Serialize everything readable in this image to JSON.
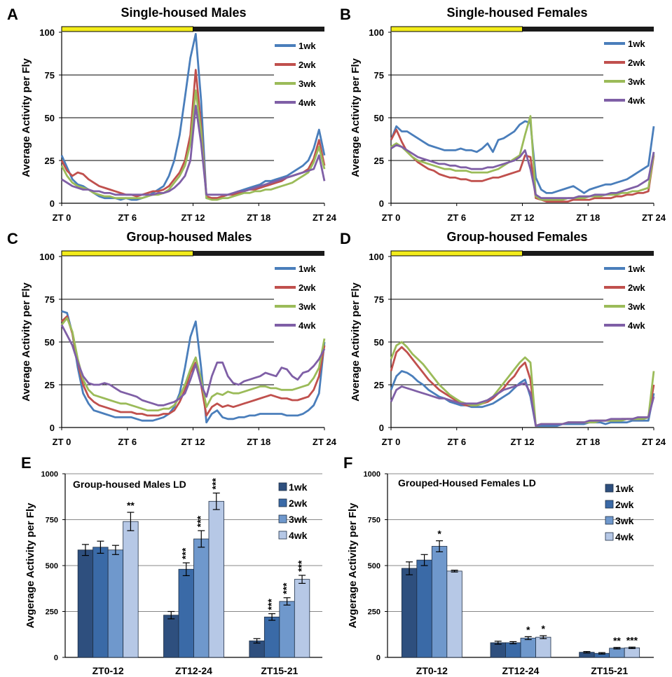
{
  "colors": {
    "1wk": "#4a7ebb",
    "2wk": "#c0504d",
    "3wk": "#9bbb59",
    "4wk": "#7f5fa6",
    "light_bar": "#f3ec1a",
    "dark_bar": "#1a1a1a",
    "bar_fills": [
      "#2e4f7e",
      "#3a6aa7",
      "#6f98cc",
      "#b6c8e6"
    ]
  },
  "chart_data": [
    {
      "id": "A",
      "type": "line",
      "panel_label": "A",
      "title": "Single-housed Males",
      "ylabel": "Average Activity per Fly",
      "xlabel": "",
      "ylim": [
        0,
        100
      ],
      "yticks": [
        0,
        25,
        50,
        75,
        100
      ],
      "xlim": [
        0,
        24
      ],
      "xticks": [
        "ZT 0",
        "ZT 6",
        "ZT 12",
        "ZT 18",
        "ZT 24"
      ],
      "photoperiod": [
        "light 0-12",
        "dark 12-24"
      ],
      "legend": [
        "1wk",
        "2wk",
        "3wk",
        "4wk"
      ],
      "series": [
        {
          "name": "1wk",
          "y": [
            28,
            21,
            14,
            11,
            10,
            8,
            6,
            4,
            3,
            3,
            3,
            2,
            3,
            2,
            2,
            3,
            4,
            6,
            8,
            10,
            16,
            25,
            40,
            62,
            85,
            99,
            60,
            3,
            3,
            3,
            4,
            5,
            6,
            7,
            8,
            9,
            10,
            11,
            13,
            13,
            14,
            15,
            16,
            18,
            20,
            22,
            25,
            32,
            43,
            28
          ]
        },
        {
          "name": "2wk",
          "y": [
            25,
            19,
            16,
            18,
            17,
            14,
            12,
            10,
            9,
            8,
            7,
            6,
            5,
            5,
            4,
            5,
            6,
            7,
            7,
            8,
            10,
            14,
            18,
            25,
            40,
            78,
            45,
            4,
            3,
            3,
            4,
            5,
            5,
            6,
            7,
            8,
            8,
            9,
            10,
            11,
            12,
            13,
            15,
            16,
            17,
            18,
            20,
            26,
            37,
            22
          ]
        },
        {
          "name": "3wk",
          "y": [
            22,
            16,
            12,
            10,
            9,
            8,
            6,
            5,
            4,
            4,
            3,
            3,
            3,
            3,
            3,
            3,
            4,
            5,
            5,
            6,
            8,
            12,
            16,
            22,
            35,
            66,
            42,
            3,
            2,
            2,
            3,
            3,
            4,
            5,
            6,
            6,
            7,
            7,
            8,
            8,
            9,
            10,
            11,
            12,
            14,
            16,
            18,
            24,
            33,
            20
          ]
        },
        {
          "name": "4wk",
          "y": [
            14,
            12,
            10,
            9,
            8,
            8,
            7,
            7,
            6,
            6,
            5,
            5,
            5,
            5,
            5,
            5,
            5,
            5,
            6,
            6,
            7,
            9,
            12,
            16,
            25,
            57,
            35,
            5,
            5,
            5,
            5,
            5,
            6,
            7,
            7,
            8,
            9,
            10,
            11,
            12,
            13,
            14,
            15,
            16,
            17,
            18,
            19,
            20,
            28,
            13
          ]
        }
      ]
    },
    {
      "id": "B",
      "type": "line",
      "panel_label": "B",
      "title": "Single-housed Females",
      "ylabel": "Average Activity per Fly",
      "xlabel": "",
      "ylim": [
        0,
        100
      ],
      "yticks": [
        0,
        25,
        50,
        75,
        100
      ],
      "xlim": [
        0,
        24
      ],
      "xticks": [
        "ZT 0",
        "ZT 6",
        "ZT 12",
        "ZT 18",
        "ZT 24"
      ],
      "photoperiod": [
        "light 0-12",
        "dark 12-24"
      ],
      "legend": [
        "1wk",
        "2wk",
        "3wk",
        "4wk"
      ],
      "series": [
        {
          "name": "1wk",
          "y": [
            37,
            45,
            42,
            42,
            40,
            38,
            36,
            34,
            33,
            32,
            31,
            31,
            31,
            32,
            31,
            31,
            30,
            32,
            35,
            30,
            37,
            38,
            40,
            42,
            46,
            48,
            47,
            15,
            8,
            6,
            6,
            7,
            8,
            9,
            10,
            8,
            6,
            8,
            9,
            10,
            11,
            11,
            12,
            13,
            14,
            16,
            18,
            20,
            22,
            45
          ]
        },
        {
          "name": "2wk",
          "y": [
            37,
            43,
            36,
            30,
            27,
            24,
            22,
            20,
            19,
            17,
            16,
            15,
            15,
            14,
            14,
            13,
            13,
            13,
            14,
            15,
            15,
            16,
            17,
            18,
            19,
            28,
            27,
            3,
            2,
            1,
            1,
            1,
            1,
            1,
            2,
            2,
            2,
            2,
            3,
            3,
            3,
            3,
            4,
            4,
            5,
            5,
            6,
            6,
            7,
            28
          ]
        },
        {
          "name": "3wk",
          "y": [
            33,
            35,
            33,
            30,
            27,
            25,
            24,
            23,
            22,
            21,
            20,
            20,
            19,
            19,
            19,
            18,
            18,
            18,
            18,
            19,
            20,
            22,
            24,
            26,
            28,
            40,
            51,
            4,
            2,
            2,
            2,
            2,
            2,
            3,
            3,
            3,
            3,
            4,
            4,
            4,
            5,
            5,
            5,
            6,
            6,
            7,
            7,
            8,
            9,
            29
          ]
        },
        {
          "name": "4wk",
          "y": [
            32,
            34,
            33,
            31,
            29,
            27,
            26,
            25,
            24,
            23,
            23,
            22,
            22,
            21,
            21,
            20,
            20,
            20,
            21,
            21,
            22,
            23,
            24,
            25,
            27,
            31,
            20,
            5,
            3,
            3,
            3,
            3,
            3,
            3,
            3,
            4,
            4,
            4,
            5,
            5,
            5,
            6,
            6,
            7,
            8,
            9,
            10,
            12,
            14,
            30
          ]
        }
      ]
    },
    {
      "id": "C",
      "type": "line",
      "panel_label": "C",
      "title": "Group-housed Males",
      "ylabel": "Average Activity per Fly",
      "xlabel": "",
      "ylim": [
        0,
        100
      ],
      "yticks": [
        0,
        25,
        50,
        75,
        100
      ],
      "xlim": [
        0,
        24
      ],
      "xticks": [
        "ZT 0",
        "ZT 6",
        "ZT 12",
        "ZT 18",
        "ZT 24"
      ],
      "photoperiod": [
        "light 0-12",
        "dark 12-24"
      ],
      "legend": [
        "1wk",
        "2wk",
        "3wk",
        "4wk"
      ],
      "series": [
        {
          "name": "1wk",
          "y": [
            68,
            67,
            55,
            35,
            20,
            14,
            10,
            9,
            8,
            7,
            6,
            6,
            6,
            6,
            5,
            4,
            4,
            4,
            5,
            6,
            8,
            12,
            20,
            35,
            53,
            62,
            35,
            3,
            8,
            10,
            6,
            5,
            5,
            6,
            6,
            7,
            7,
            8,
            8,
            8,
            8,
            8,
            7,
            7,
            7,
            8,
            10,
            13,
            20,
            50
          ]
        },
        {
          "name": "2wk",
          "y": [
            62,
            65,
            55,
            38,
            25,
            18,
            15,
            13,
            12,
            11,
            10,
            9,
            9,
            9,
            8,
            8,
            7,
            7,
            7,
            8,
            8,
            10,
            15,
            22,
            32,
            38,
            25,
            7,
            12,
            14,
            12,
            13,
            12,
            13,
            14,
            15,
            16,
            17,
            18,
            19,
            18,
            17,
            17,
            16,
            16,
            17,
            18,
            22,
            30,
            48
          ]
        },
        {
          "name": "3wk",
          "y": [
            60,
            64,
            56,
            40,
            28,
            22,
            19,
            18,
            17,
            16,
            15,
            14,
            14,
            13,
            12,
            11,
            10,
            10,
            10,
            11,
            11,
            13,
            18,
            25,
            34,
            41,
            28,
            12,
            18,
            20,
            19,
            21,
            20,
            20,
            21,
            22,
            23,
            24,
            24,
            23,
            23,
            22,
            22,
            22,
            23,
            24,
            25,
            29,
            35,
            52
          ]
        },
        {
          "name": "4wk",
          "y": [
            60,
            54,
            48,
            38,
            30,
            26,
            25,
            25,
            26,
            25,
            23,
            21,
            20,
            19,
            18,
            16,
            15,
            14,
            13,
            13,
            14,
            15,
            17,
            20,
            28,
            37,
            25,
            18,
            30,
            38,
            38,
            30,
            26,
            25,
            27,
            28,
            29,
            30,
            32,
            31,
            30,
            35,
            34,
            30,
            28,
            32,
            33,
            36,
            40,
            46
          ]
        }
      ]
    },
    {
      "id": "D",
      "type": "line",
      "panel_label": "D",
      "title": "Group-housed Females",
      "ylabel": "Average Activity per Fly",
      "xlabel": "",
      "ylim": [
        0,
        100
      ],
      "yticks": [
        0,
        25,
        50,
        75,
        100
      ],
      "xlim": [
        0,
        24
      ],
      "xticks": [
        "ZT 0",
        "ZT 6",
        "ZT 12",
        "ZT 18",
        "ZT 24"
      ],
      "photoperiod": [
        "light 0-12",
        "dark 12-24"
      ],
      "legend": [
        "1wk",
        "2wk",
        "3wk",
        "4wk"
      ],
      "series": [
        {
          "name": "1wk",
          "y": [
            22,
            30,
            33,
            32,
            30,
            27,
            25,
            22,
            20,
            18,
            17,
            15,
            14,
            13,
            13,
            12,
            12,
            12,
            13,
            14,
            16,
            18,
            20,
            23,
            26,
            28,
            18,
            1,
            1,
            1,
            1,
            1,
            2,
            2,
            2,
            2,
            2,
            3,
            3,
            3,
            2,
            3,
            3,
            3,
            3,
            4,
            4,
            4,
            4,
            20
          ]
        },
        {
          "name": "2wk",
          "y": [
            33,
            44,
            47,
            44,
            40,
            36,
            32,
            28,
            25,
            22,
            20,
            18,
            16,
            14,
            13,
            13,
            13,
            14,
            15,
            17,
            20,
            23,
            27,
            30,
            35,
            38,
            28,
            1,
            2,
            2,
            2,
            2,
            2,
            3,
            3,
            3,
            3,
            3,
            4,
            4,
            4,
            4,
            4,
            5,
            5,
            5,
            5,
            5,
            6,
            25
          ]
        },
        {
          "name": "3wk",
          "y": [
            40,
            48,
            50,
            47,
            43,
            40,
            37,
            33,
            29,
            25,
            22,
            19,
            17,
            15,
            14,
            13,
            13,
            14,
            16,
            18,
            22,
            26,
            30,
            34,
            38,
            41,
            38,
            1,
            2,
            2,
            2,
            2,
            2,
            3,
            3,
            3,
            3,
            3,
            3,
            4,
            4,
            4,
            4,
            4,
            5,
            5,
            5,
            5,
            6,
            33
          ]
        },
        {
          "name": "4wk",
          "y": [
            15,
            22,
            24,
            23,
            22,
            21,
            20,
            19,
            18,
            17,
            17,
            16,
            15,
            14,
            14,
            14,
            14,
            15,
            16,
            18,
            20,
            22,
            23,
            24,
            25,
            26,
            20,
            1,
            2,
            2,
            2,
            2,
            2,
            3,
            3,
            3,
            3,
            4,
            4,
            4,
            4,
            5,
            5,
            5,
            5,
            5,
            6,
            6,
            6,
            18
          ]
        }
      ]
    },
    {
      "id": "E",
      "type": "bar",
      "panel_label": "E",
      "title": "Group-housed Males LD",
      "ylabel": "Avgerage Activity per Fly",
      "xlabel": "",
      "ylim": [
        0,
        1000
      ],
      "yticks": [
        0,
        250,
        500,
        750,
        1000
      ],
      "categories": [
        "ZT0-12",
        "ZT12-24",
        "ZT15-21"
      ],
      "series": [
        {
          "name": "1wk",
          "values": [
            585,
            230,
            90
          ],
          "errors": [
            30,
            20,
            12
          ],
          "stars": [
            "",
            "",
            ""
          ]
        },
        {
          "name": "2wk",
          "values": [
            600,
            480,
            220
          ],
          "errors": [
            33,
            35,
            18
          ],
          "stars": [
            "",
            "***",
            "***"
          ]
        },
        {
          "name": "3wk",
          "values": [
            585,
            645,
            305
          ],
          "errors": [
            25,
            45,
            20
          ],
          "stars": [
            "",
            "***",
            "***"
          ]
        },
        {
          "name": "4wk",
          "values": [
            740,
            850,
            425
          ],
          "errors": [
            50,
            45,
            22
          ],
          "stars": [
            "**",
            "***",
            "***"
          ]
        }
      ]
    },
    {
      "id": "F",
      "type": "bar",
      "panel_label": "F",
      "title": "Grouped-Housed Females LD",
      "ylabel": "Avgerage Activity per Fly",
      "xlabel": "",
      "ylim": [
        0,
        1000
      ],
      "yticks": [
        0,
        250,
        500,
        750,
        1000
      ],
      "categories": [
        "ZT0-12",
        "ZT12-24",
        "ZT15-21"
      ],
      "series": [
        {
          "name": "1wk",
          "values": [
            485,
            80,
            28
          ],
          "errors": [
            35,
            8,
            4
          ],
          "stars": [
            "",
            "",
            ""
          ]
        },
        {
          "name": "2wk",
          "values": [
            530,
            80,
            22
          ],
          "errors": [
            30,
            6,
            4
          ],
          "stars": [
            "",
            "",
            ""
          ]
        },
        {
          "name": "3wk",
          "values": [
            605,
            105,
            50
          ],
          "errors": [
            30,
            8,
            4
          ],
          "stars": [
            "*",
            "*",
            "**"
          ]
        },
        {
          "name": "4wk",
          "values": [
            470,
            110,
            52
          ],
          "errors": [
            5,
            8,
            4
          ],
          "stars": [
            "",
            "*",
            "***"
          ]
        }
      ]
    }
  ]
}
